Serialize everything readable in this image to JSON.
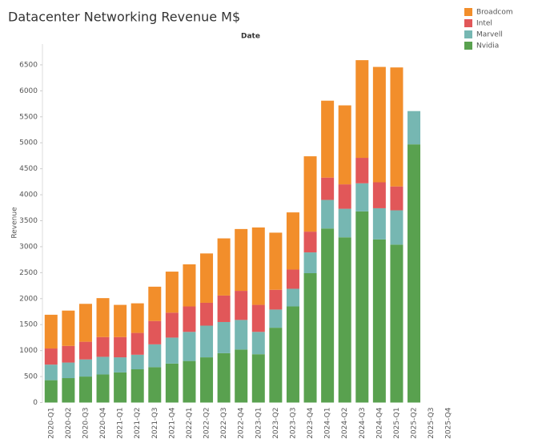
{
  "chart_data": {
    "type": "bar",
    "stacked": true,
    "title": "Datacenter Networking Revenue M$",
    "x_header": "Date",
    "y_label": "Revenue",
    "categories": [
      "2020-Q1",
      "2020-Q2",
      "2020-Q3",
      "2020-Q4",
      "2021-Q1",
      "2021-Q2",
      "2021-Q3",
      "2021-Q4",
      "2022-Q1",
      "2022-Q2",
      "2022-Q3",
      "2022-Q4",
      "2023-Q1",
      "2023-Q2",
      "2023-Q3",
      "2023-Q4",
      "2024-Q1",
      "2024-Q2",
      "2024-Q3",
      "2024-Q4",
      "2025-Q1",
      "2025-Q2",
      "2025-Q3",
      "2025-Q4"
    ],
    "series": [
      {
        "name": "Broadcom",
        "color": "#f28e2b",
        "values": [
          650,
          680,
          730,
          750,
          620,
          570,
          660,
          790,
          810,
          950,
          1100,
          1190,
          1490,
          1100,
          1100,
          1450,
          1480,
          1520,
          1880,
          2220,
          2290,
          null,
          null,
          null
        ]
      },
      {
        "name": "Intel",
        "color": "#e15759",
        "values": [
          310,
          320,
          340,
          380,
          390,
          420,
          450,
          480,
          490,
          440,
          510,
          560,
          520,
          380,
          370,
          400,
          430,
          470,
          490,
          500,
          460,
          null,
          null,
          null
        ]
      },
      {
        "name": "Marvell",
        "color": "#76b7b2",
        "values": [
          300,
          300,
          330,
          340,
          290,
          280,
          440,
          500,
          560,
          610,
          600,
          570,
          430,
          350,
          340,
          400,
          550,
          550,
          540,
          600,
          660,
          640,
          null,
          null
        ]
      },
      {
        "name": "Nvidia",
        "color": "#59a14f",
        "values": [
          430,
          470,
          500,
          540,
          580,
          640,
          680,
          750,
          800,
          870,
          950,
          1020,
          930,
          1440,
          1850,
          2490,
          3350,
          3180,
          3680,
          3140,
          3040,
          4970,
          null,
          null
        ]
      }
    ],
    "ylim": [
      0,
      6900
    ],
    "yticks": [
      0,
      500,
      1000,
      1500,
      2000,
      2500,
      3000,
      3500,
      4000,
      4500,
      5000,
      5500,
      6000,
      6500
    ],
    "grid": false
  }
}
